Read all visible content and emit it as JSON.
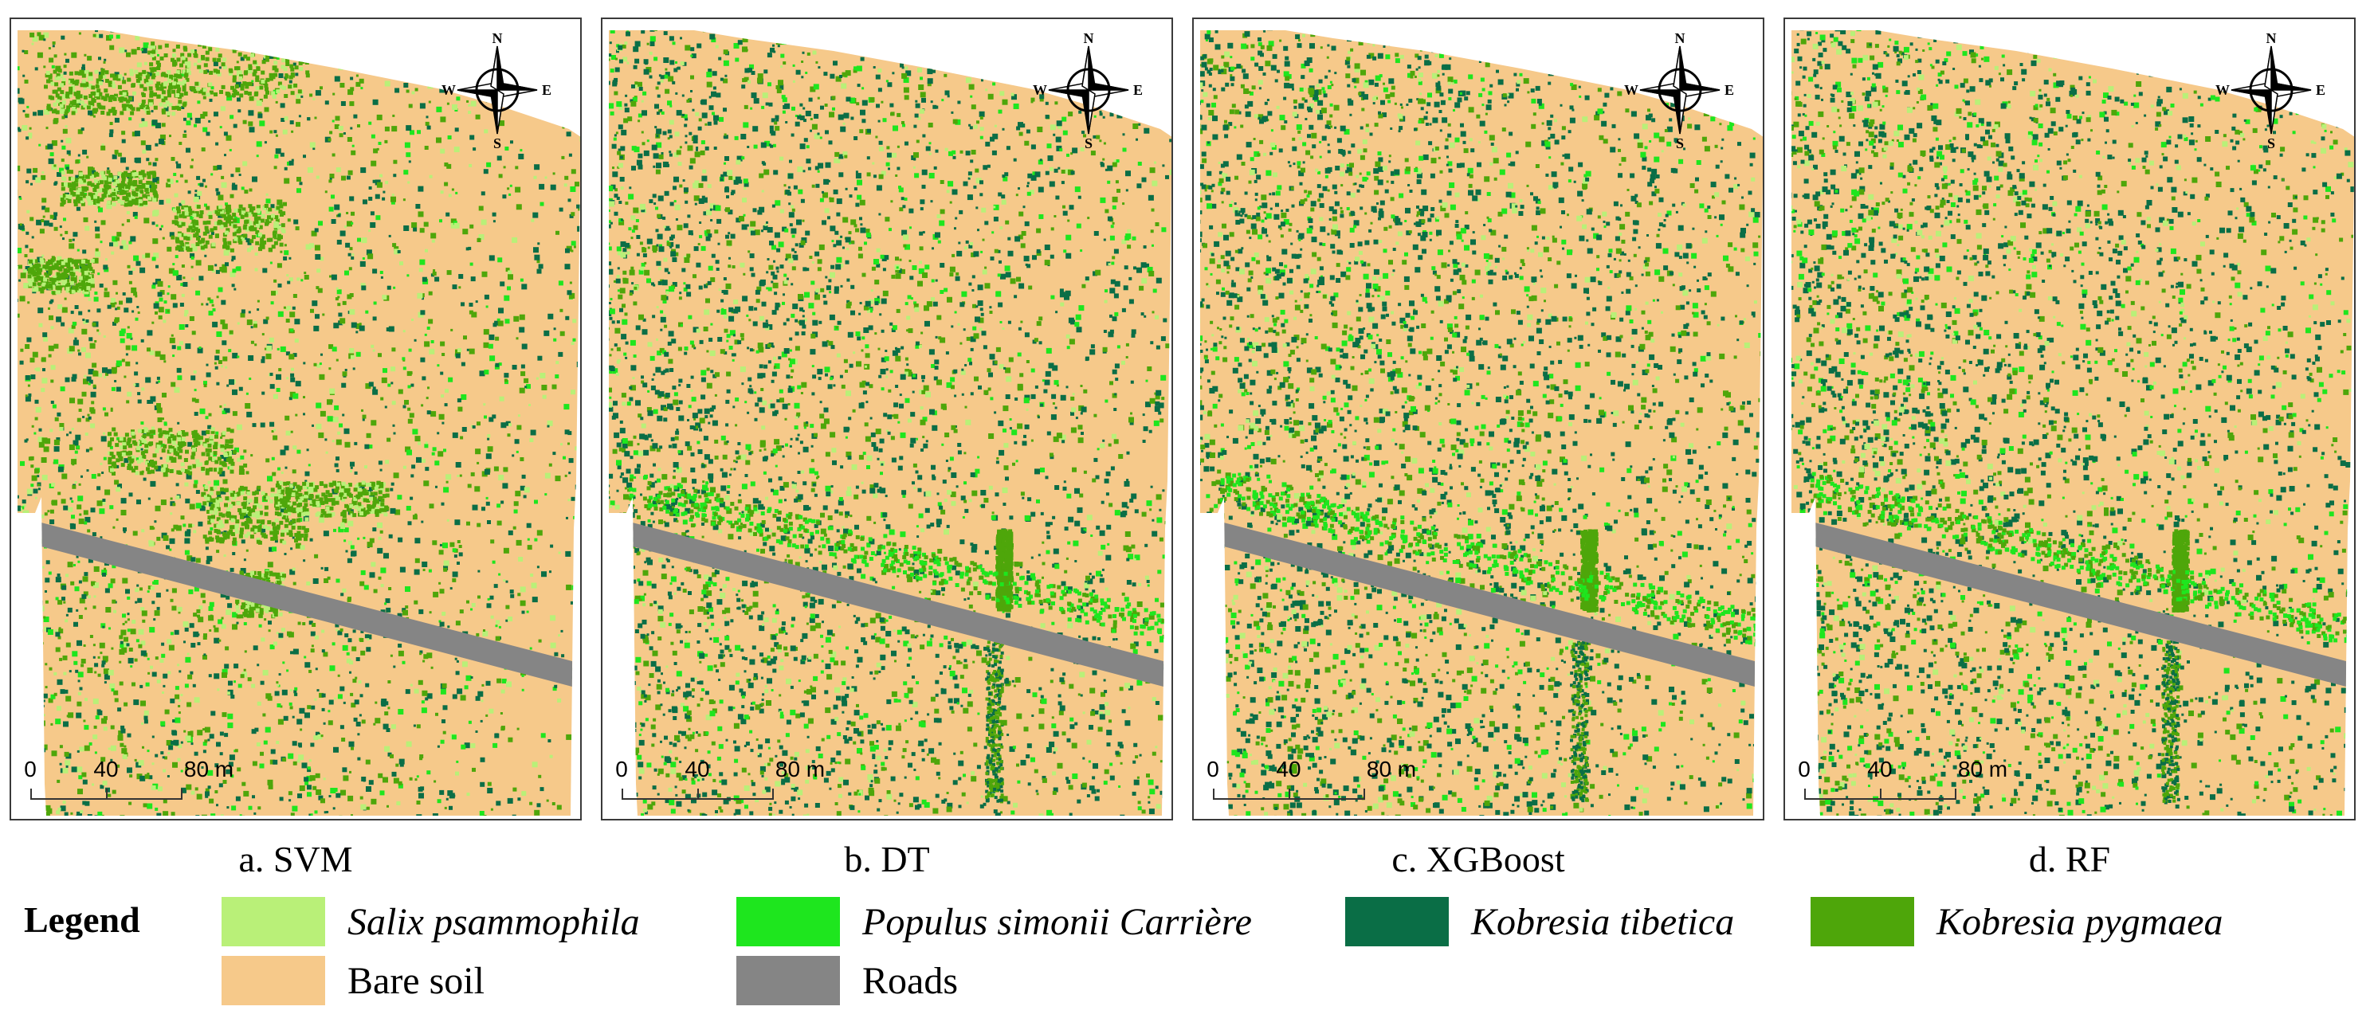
{
  "panels": [
    {
      "caption": "a. SVM",
      "variant": "svm"
    },
    {
      "caption": "b. DT",
      "variant": "dt"
    },
    {
      "caption": "c. XGBoost",
      "variant": "xgb"
    },
    {
      "caption": "d. RF",
      "variant": "rf"
    }
  ],
  "compass": {
    "n": "N",
    "s": "S",
    "e": "E",
    "w": "W"
  },
  "scale_bar": {
    "labels": [
      "0",
      "40",
      "80 m"
    ]
  },
  "legend": {
    "title": "Legend",
    "items": [
      {
        "label": "Salix psammophila",
        "color": "#b9f078",
        "italic": true
      },
      {
        "label": "Populus simonii Carrière",
        "color": "#1ee61e",
        "italic": true
      },
      {
        "label": "Kobresia tibetica",
        "color": "#0a6e46",
        "italic": true
      },
      {
        "label": "Kobresia pygmaea",
        "color": "#4ea60a",
        "italic": true
      },
      {
        "label": "Bare soil",
        "color": "#f6c98a",
        "italic": false
      },
      {
        "label": "Roads",
        "color": "#858585",
        "italic": false
      }
    ]
  }
}
